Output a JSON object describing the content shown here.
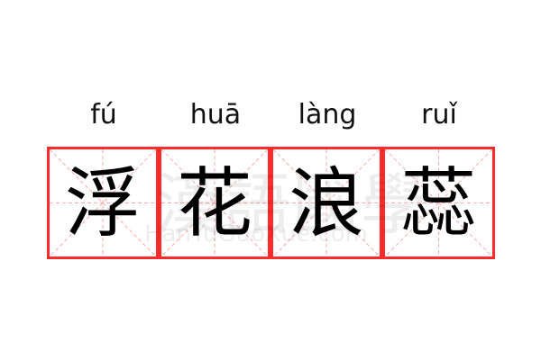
{
  "words": [
    {
      "pinyin": "fú",
      "char": "浮"
    },
    {
      "pinyin": "huā",
      "char": "花"
    },
    {
      "pinyin": "làng",
      "char": "浪"
    },
    {
      "pinyin": "ruǐ",
      "char": "蕊"
    }
  ],
  "watermark": {
    "cn": "漢語國學",
    "en": "HanYuGuoXue.com"
  },
  "colors": {
    "border": "#ff2b2b",
    "guide": "#ffaaaa",
    "text": "#000000"
  }
}
